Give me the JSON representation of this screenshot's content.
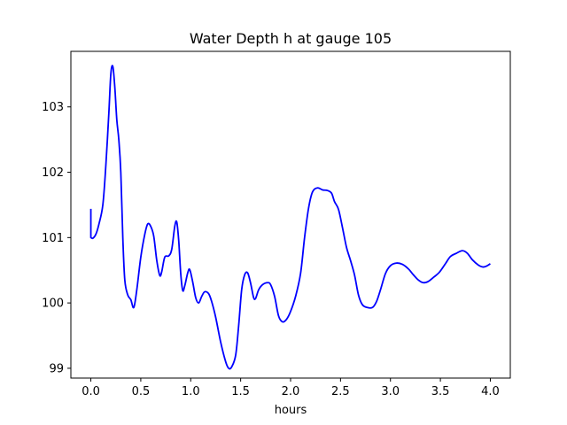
{
  "chart_data": {
    "type": "line",
    "title": "Water Depth h at gauge 105",
    "xlabel": "hours",
    "ylabel": "",
    "xlim": [
      -0.2,
      4.2
    ],
    "ylim": [
      98.85,
      103.85
    ],
    "xticks": [
      0.0,
      0.5,
      1.0,
      1.5,
      2.0,
      2.5,
      3.0,
      3.5,
      4.0
    ],
    "xtick_labels": [
      "0.0",
      "0.5",
      "1.0",
      "1.5",
      "2.0",
      "2.5",
      "3.0",
      "3.5",
      "4.0"
    ],
    "yticks": [
      99,
      100,
      101,
      102,
      103
    ],
    "ytick_labels": [
      "99",
      "100",
      "101",
      "102",
      "103"
    ],
    "grid": false,
    "series": [
      {
        "color": "#0000ff",
        "points": [
          [
            0.0,
            101.44
          ],
          [
            0.0,
            101.0
          ],
          [
            0.02,
            100.99
          ],
          [
            0.05,
            101.05
          ],
          [
            0.08,
            101.2
          ],
          [
            0.12,
            101.5
          ],
          [
            0.15,
            102.1
          ],
          [
            0.18,
            102.9
          ],
          [
            0.2,
            103.5
          ],
          [
            0.22,
            103.62
          ],
          [
            0.24,
            103.3
          ],
          [
            0.26,
            102.8
          ],
          [
            0.28,
            102.5
          ],
          [
            0.3,
            102.0
          ],
          [
            0.32,
            101.0
          ],
          [
            0.34,
            100.35
          ],
          [
            0.37,
            100.12
          ],
          [
            0.4,
            100.05
          ],
          [
            0.43,
            99.93
          ],
          [
            0.46,
            100.2
          ],
          [
            0.5,
            100.7
          ],
          [
            0.54,
            101.05
          ],
          [
            0.57,
            101.21
          ],
          [
            0.6,
            101.17
          ],
          [
            0.63,
            101.02
          ],
          [
            0.66,
            100.65
          ],
          [
            0.69,
            100.42
          ],
          [
            0.71,
            100.48
          ],
          [
            0.74,
            100.7
          ],
          [
            0.78,
            100.72
          ],
          [
            0.81,
            100.82
          ],
          [
            0.84,
            101.17
          ],
          [
            0.86,
            101.24
          ],
          [
            0.88,
            100.95
          ],
          [
            0.9,
            100.45
          ],
          [
            0.92,
            100.19
          ],
          [
            0.94,
            100.26
          ],
          [
            0.97,
            100.46
          ],
          [
            0.99,
            100.51
          ],
          [
            1.02,
            100.32
          ],
          [
            1.05,
            100.08
          ],
          [
            1.08,
            100.0
          ],
          [
            1.11,
            100.1
          ],
          [
            1.14,
            100.17
          ],
          [
            1.18,
            100.14
          ],
          [
            1.21,
            100.02
          ],
          [
            1.25,
            99.78
          ],
          [
            1.3,
            99.4
          ],
          [
            1.35,
            99.1
          ],
          [
            1.38,
            99.0
          ],
          [
            1.41,
            99.02
          ],
          [
            1.45,
            99.2
          ],
          [
            1.48,
            99.65
          ],
          [
            1.51,
            100.2
          ],
          [
            1.54,
            100.43
          ],
          [
            1.57,
            100.46
          ],
          [
            1.6,
            100.3
          ],
          [
            1.63,
            100.08
          ],
          [
            1.65,
            100.07
          ],
          [
            1.68,
            100.2
          ],
          [
            1.72,
            100.28
          ],
          [
            1.77,
            100.31
          ],
          [
            1.8,
            100.28
          ],
          [
            1.84,
            100.1
          ],
          [
            1.88,
            99.8
          ],
          [
            1.92,
            99.71
          ],
          [
            1.96,
            99.75
          ],
          [
            2.0,
            99.87
          ],
          [
            2.05,
            100.1
          ],
          [
            2.1,
            100.45
          ],
          [
            2.14,
            101.0
          ],
          [
            2.18,
            101.45
          ],
          [
            2.22,
            101.7
          ],
          [
            2.27,
            101.76
          ],
          [
            2.32,
            101.73
          ],
          [
            2.37,
            101.72
          ],
          [
            2.41,
            101.68
          ],
          [
            2.44,
            101.55
          ],
          [
            2.48,
            101.43
          ],
          [
            2.52,
            101.15
          ],
          [
            2.56,
            100.85
          ],
          [
            2.6,
            100.65
          ],
          [
            2.64,
            100.43
          ],
          [
            2.68,
            100.12
          ],
          [
            2.72,
            99.97
          ],
          [
            2.77,
            99.93
          ],
          [
            2.82,
            99.93
          ],
          [
            2.86,
            100.02
          ],
          [
            2.9,
            100.2
          ],
          [
            2.95,
            100.45
          ],
          [
            3.0,
            100.57
          ],
          [
            3.06,
            100.61
          ],
          [
            3.12,
            100.59
          ],
          [
            3.18,
            100.52
          ],
          [
            3.23,
            100.43
          ],
          [
            3.28,
            100.35
          ],
          [
            3.33,
            100.31
          ],
          [
            3.38,
            100.33
          ],
          [
            3.43,
            100.39
          ],
          [
            3.49,
            100.47
          ],
          [
            3.55,
            100.6
          ],
          [
            3.6,
            100.71
          ],
          [
            3.66,
            100.76
          ],
          [
            3.72,
            100.8
          ],
          [
            3.77,
            100.76
          ],
          [
            3.82,
            100.66
          ],
          [
            3.88,
            100.58
          ],
          [
            3.93,
            100.55
          ],
          [
            3.97,
            100.57
          ],
          [
            4.0,
            100.6
          ]
        ]
      }
    ]
  }
}
